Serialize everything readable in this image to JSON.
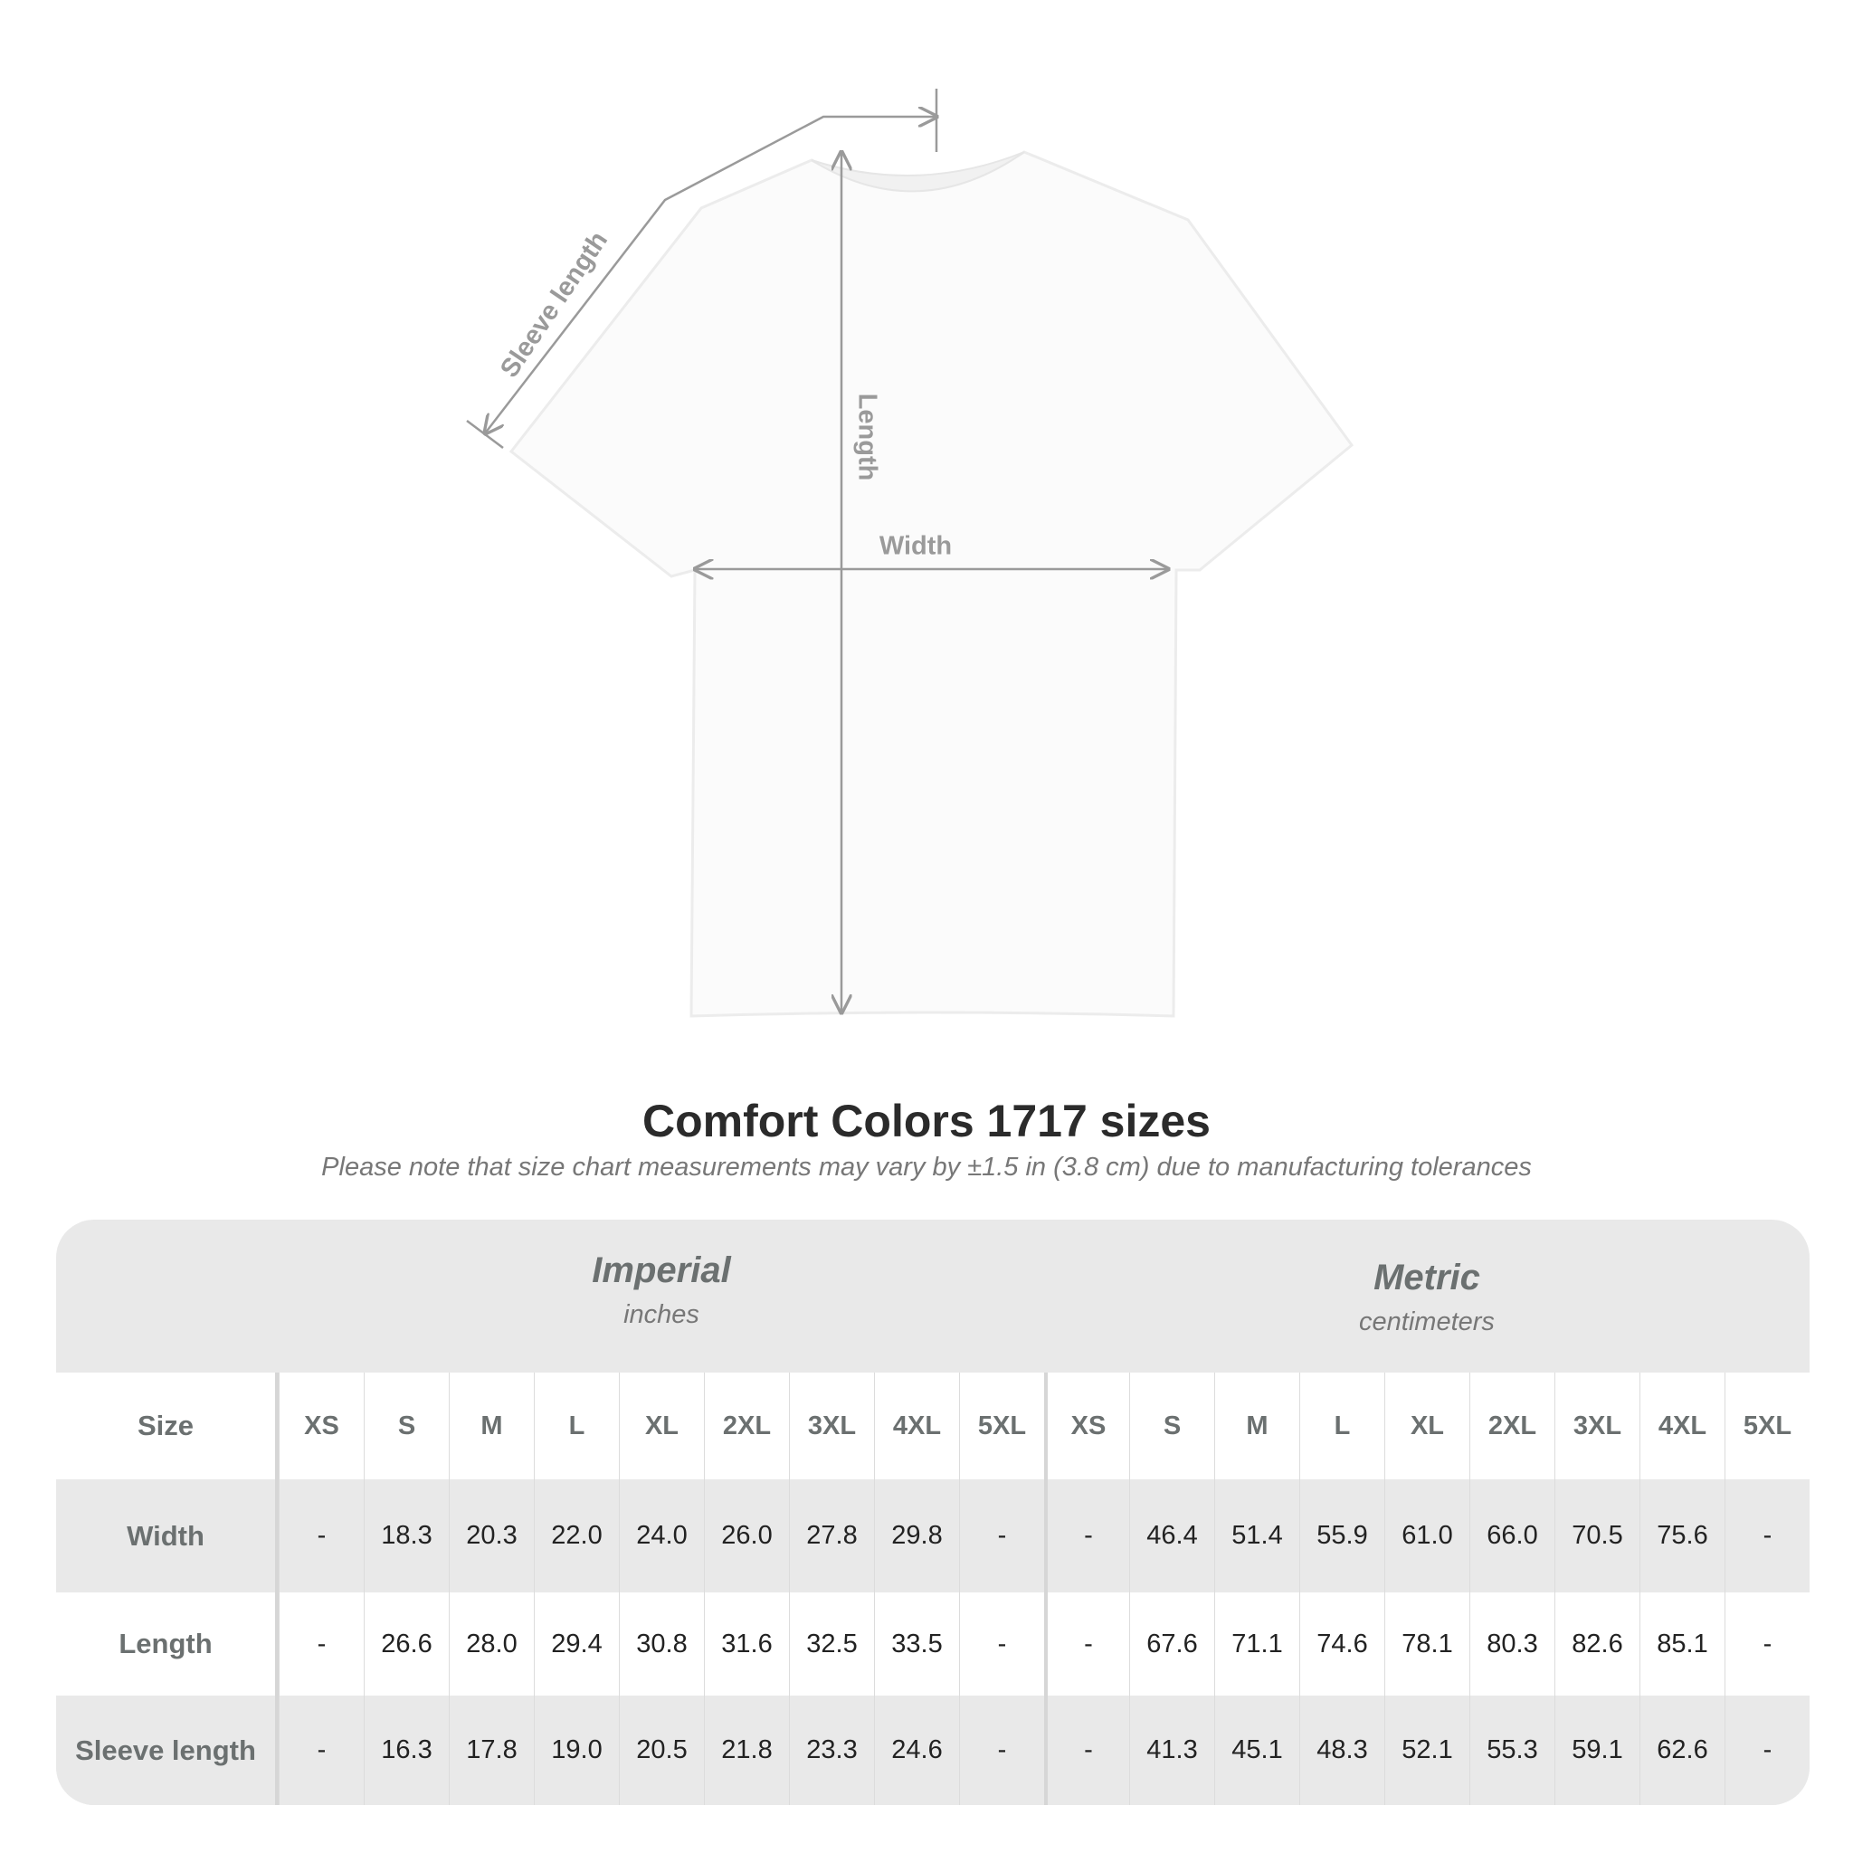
{
  "diagram": {
    "labels": {
      "sleeve": "Sleeve length",
      "length": "Length",
      "width": "Width"
    },
    "line_color": "#9a9a9a"
  },
  "title": "Comfort Colors 1717 sizes",
  "note": "Please note that size chart measurements may vary by ±1.5 in (3.8 cm) due to manufacturing tolerances",
  "table": {
    "imperial": {
      "label": "Imperial",
      "unit": "inches"
    },
    "metric": {
      "label": "Metric",
      "unit": "centimeters"
    },
    "size_label": "Size",
    "sizes": [
      "XS",
      "S",
      "M",
      "L",
      "XL",
      "2XL",
      "3XL",
      "4XL",
      "5XL"
    ],
    "rows": [
      {
        "label": "Width",
        "imperial": [
          "-",
          "18.3",
          "20.3",
          "22.0",
          "24.0",
          "26.0",
          "27.8",
          "29.8",
          "-"
        ],
        "metric": [
          "-",
          "46.4",
          "51.4",
          "55.9",
          "61.0",
          "66.0",
          "70.5",
          "75.6",
          "-"
        ]
      },
      {
        "label": "Length",
        "imperial": [
          "-",
          "26.6",
          "28.0",
          "29.4",
          "30.8",
          "31.6",
          "32.5",
          "33.5",
          "-"
        ],
        "metric": [
          "-",
          "67.6",
          "71.1",
          "74.6",
          "78.1",
          "80.3",
          "82.6",
          "85.1",
          "-"
        ]
      },
      {
        "label": "Sleeve length",
        "imperial": [
          "-",
          "16.3",
          "17.8",
          "19.0",
          "20.5",
          "21.8",
          "23.3",
          "24.6",
          "-"
        ],
        "metric": [
          "-",
          "41.3",
          "45.1",
          "48.3",
          "52.1",
          "55.3",
          "59.1",
          "62.6",
          "-"
        ]
      }
    ]
  }
}
